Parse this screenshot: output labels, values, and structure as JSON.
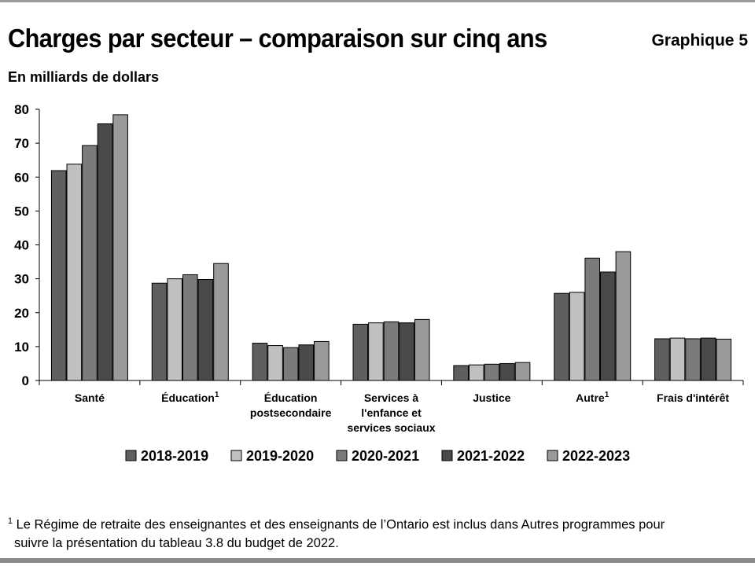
{
  "header": {
    "title": "Charges par secteur – comparaison sur cinq ans",
    "chart_id": "Graphique 5",
    "subtitle": "En milliards de dollars"
  },
  "footnote": {
    "marker": "1",
    "line1": "Le Régime de retraite des enseignantes et des enseignants de l’Ontario est inclus dans Autres programmes pour",
    "line2": "suivre la présentation du tableau 3.8 du budget de 2022."
  },
  "chart_data": {
    "type": "bar",
    "title": "Charges par secteur – comparaison sur cinq ans",
    "ylabel": "En milliards de dollars",
    "ylim": [
      0,
      80
    ],
    "yticks": [
      0,
      10,
      20,
      30,
      40,
      50,
      60,
      70,
      80
    ],
    "grid": false,
    "legend_position": "bottom",
    "categories": [
      {
        "lines": [
          "Santé"
        ],
        "sup": ""
      },
      {
        "lines": [
          "Éducation"
        ],
        "sup": "1"
      },
      {
        "lines": [
          "Éducation",
          "postsecondaire"
        ],
        "sup": ""
      },
      {
        "lines": [
          "Services à",
          "l'enfance et",
          "services sociaux"
        ],
        "sup": ""
      },
      {
        "lines": [
          "Justice"
        ],
        "sup": ""
      },
      {
        "lines": [
          "Autre"
        ],
        "sup": "1"
      },
      {
        "lines": [
          "Frais d'intérêt"
        ],
        "sup": ""
      }
    ],
    "series": [
      {
        "name": "2018-2019",
        "color": "#5f5f5f",
        "values": [
          61.9,
          28.7,
          11.0,
          16.6,
          4.4,
          25.7,
          12.3
        ]
      },
      {
        "name": "2019-2020",
        "color": "#c0c0c0",
        "values": [
          63.8,
          30.0,
          10.3,
          17.0,
          4.6,
          26.0,
          12.5
        ]
      },
      {
        "name": "2020-2021",
        "color": "#7b7b7b",
        "values": [
          69.3,
          31.2,
          9.7,
          17.3,
          4.8,
          36.1,
          12.3
        ]
      },
      {
        "name": "2021-2022",
        "color": "#4a4a4a",
        "values": [
          75.7,
          29.8,
          10.5,
          17.0,
          5.0,
          32.0,
          12.5
        ]
      },
      {
        "name": "2022-2023",
        "color": "#9a9a9a",
        "values": [
          78.4,
          34.5,
          11.5,
          18.0,
          5.3,
          38.0,
          12.2
        ]
      }
    ]
  }
}
